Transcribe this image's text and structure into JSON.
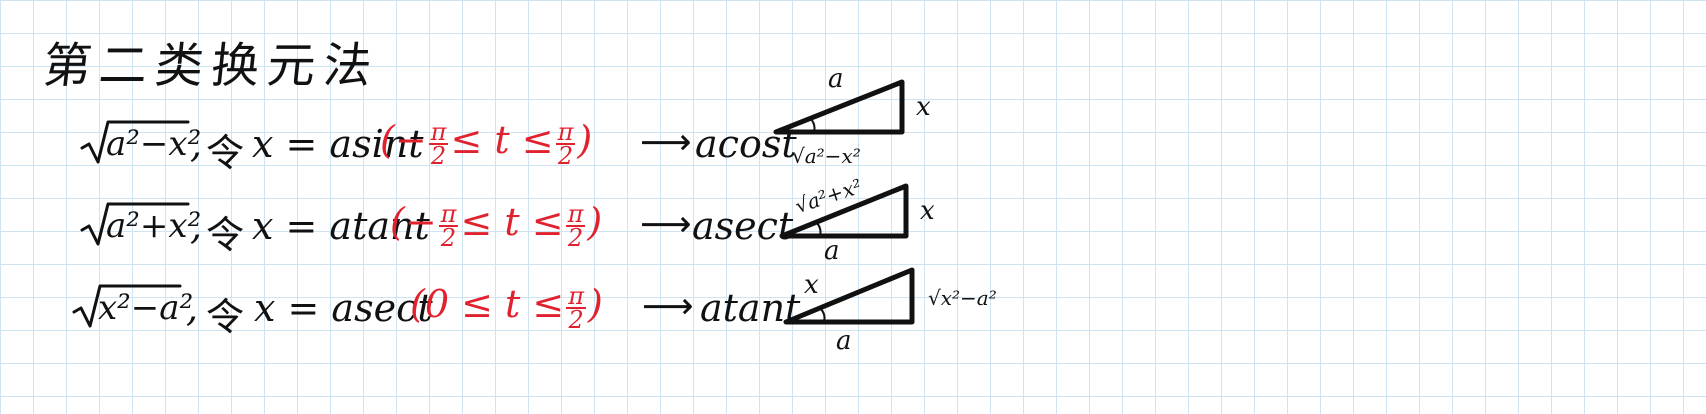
{
  "title": "第二类换元法",
  "rows": [
    {
      "radicand": "a²−x²",
      "comma": ",",
      "let": "令",
      "sub": "x = asint",
      "cond_open": "(−",
      "cond_num1": "π",
      "cond_den1": "2",
      "cond_mid": "≤ t ≤",
      "cond_num2": "π",
      "cond_den2": "2",
      "cond_close": ")",
      "arrow": "⟶",
      "result": "acost",
      "tri_top": "a",
      "tri_right": "x",
      "tri_bottom": "√a²−x²"
    },
    {
      "radicand": "a²+x²",
      "comma": ",",
      "let": "令",
      "sub": "x = atant",
      "cond_open": "(−",
      "cond_num1": "π",
      "cond_den1": "2",
      "cond_mid": "≤ t ≤",
      "cond_num2": "π",
      "cond_den2": "2",
      "cond_close": ")",
      "arrow": "⟶",
      "result": "asect",
      "tri_top": "√a²+x²",
      "tri_right": "x",
      "tri_bottom": "a"
    },
    {
      "radicand": "x²−a²",
      "comma": ",",
      "let": "令",
      "sub": "x = asect",
      "cond_open": "(0 ≤ t ≤",
      "cond_num2": "π",
      "cond_den2": "2",
      "cond_close": ")",
      "arrow": "⟶",
      "result": "atant",
      "tri_top": "x",
      "tri_right": "√x²−a²",
      "tri_bottom": "a"
    }
  ],
  "colors": {
    "ink": "#111111",
    "condition_red": "#e0222e",
    "grid": "#cfe4f2"
  }
}
